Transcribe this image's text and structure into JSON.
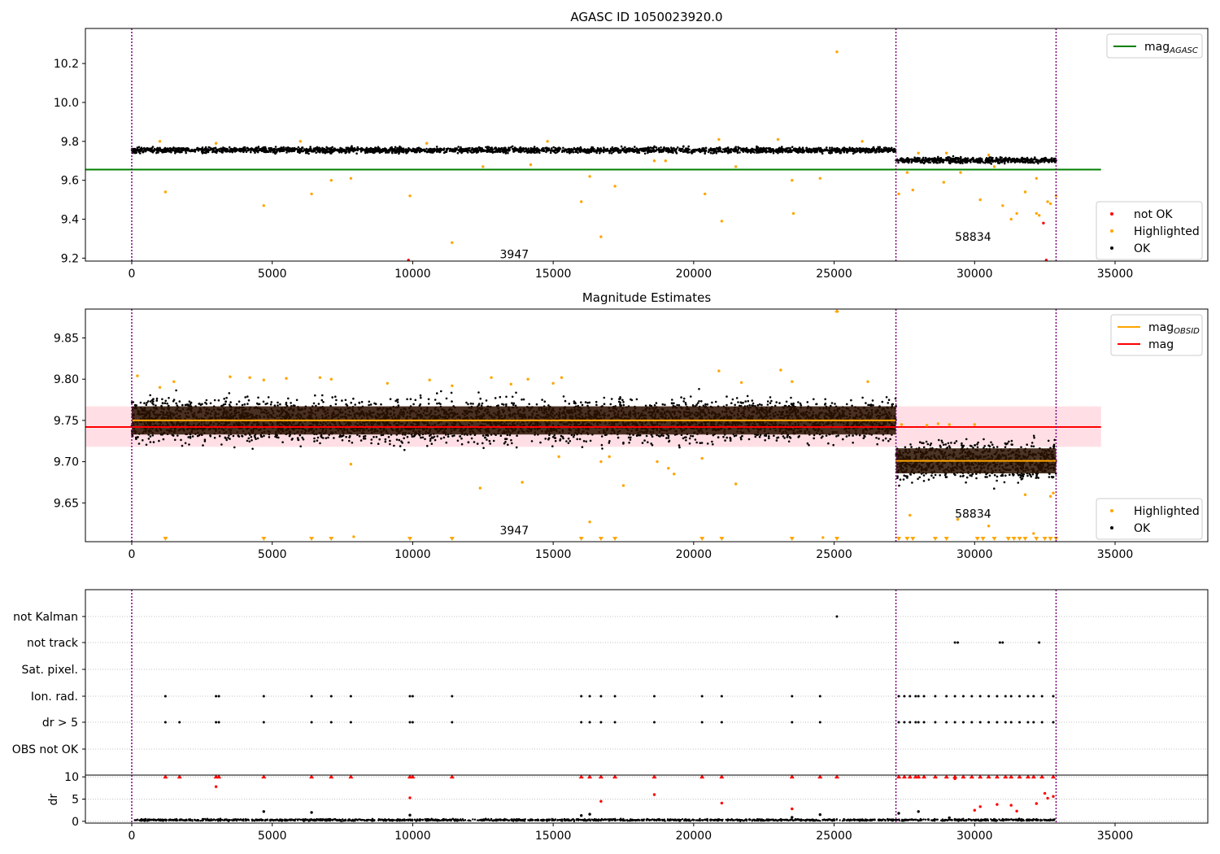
{
  "colors": {
    "ok": "#000000",
    "highlighted": "#ffa500",
    "not_ok": "#ff0000",
    "mag_agasc": "#008000",
    "mag_obsid": "#ffa500",
    "mag": "#ff0000",
    "mag_band": "#ffc0cb",
    "obs_divider": "#800080",
    "grid": "#b0b0b0"
  },
  "chart_data": [
    {
      "type": "scatter",
      "title": "AGASC ID 1050023920.0",
      "xlim": [
        -1650,
        38300
      ],
      "ylim": [
        9.185,
        10.38
      ],
      "xticks": [
        0,
        5000,
        10000,
        15000,
        20000,
        25000,
        30000,
        35000
      ],
      "yticks": [
        9.2,
        9.4,
        9.6,
        9.8,
        10.0,
        10.2
      ],
      "ytick_labels": [
        "9.2",
        "9.4",
        "9.6",
        "9.8",
        "10.0",
        "10.2"
      ],
      "obs_boundaries": [
        0,
        27200,
        32900
      ],
      "obs_labels": [
        {
          "text": "3947",
          "x": 13100,
          "y": 9.22
        },
        {
          "text": "58834",
          "x": 29300,
          "y": 9.31
        }
      ],
      "lines": [
        {
          "name": "mag",
          "sub": "AGASC",
          "y": 9.655,
          "x0": -1650,
          "x1": 34500
        }
      ],
      "legends": [
        {
          "position": "upper right",
          "items": [
            {
              "label": "mag",
              "sub": "AGASC",
              "kind": "line",
              "color": "#008000"
            }
          ]
        },
        {
          "position": "lower right",
          "items": [
            {
              "label": "not OK",
              "kind": "dot",
              "color": "#ff0000"
            },
            {
              "label": "Highlighted",
              "kind": "dot",
              "color": "#ffa500"
            },
            {
              "label": "OK",
              "kind": "dot",
              "color": "#000000"
            }
          ]
        }
      ],
      "bands": [
        {
          "x0": 0,
          "x1": 27200,
          "y_center": 9.755,
          "y_halfwidth": 0.025,
          "color": "#000000"
        },
        {
          "x0": 27200,
          "x1": 32900,
          "y_center": 9.703,
          "y_halfwidth": 0.025,
          "color": "#000000"
        }
      ],
      "series": [
        {
          "name": "Highlighted",
          "color": "#ffa500",
          "points": [
            [
              1200,
              9.54
            ],
            [
              4700,
              9.47
            ],
            [
              6400,
              9.53
            ],
            [
              7100,
              9.6
            ],
            [
              7800,
              9.61
            ],
            [
              9900,
              9.52
            ],
            [
              11400,
              9.28
            ],
            [
              12500,
              9.67
            ],
            [
              14200,
              9.68
            ],
            [
              16000,
              9.49
            ],
            [
              16300,
              9.62
            ],
            [
              16700,
              9.31
            ],
            [
              17200,
              9.57
            ],
            [
              18600,
              9.7
            ],
            [
              20400,
              9.53
            ],
            [
              21000,
              9.39
            ],
            [
              21500,
              9.67
            ],
            [
              23500,
              9.6
            ],
            [
              23550,
              9.43
            ],
            [
              24500,
              9.61
            ],
            [
              25100,
              10.26
            ],
            [
              27300,
              9.53
            ],
            [
              27600,
              9.64
            ],
            [
              27800,
              9.55
            ],
            [
              28900,
              9.59
            ],
            [
              29500,
              9.64
            ],
            [
              30200,
              9.5
            ],
            [
              30700,
              9.67
            ],
            [
              31000,
              9.47
            ],
            [
              31300,
              9.4
            ],
            [
              31500,
              9.43
            ],
            [
              31800,
              9.54
            ],
            [
              32200,
              9.43
            ],
            [
              32200,
              9.61
            ],
            [
              32300,
              9.42
            ],
            [
              32600,
              9.49
            ],
            [
              32700,
              9.48
            ],
            [
              32900,
              9.52
            ],
            [
              1000,
              9.8
            ],
            [
              3000,
              9.79
            ],
            [
              6000,
              9.8
            ],
            [
              10500,
              9.79
            ],
            [
              14800,
              9.8
            ],
            [
              19000,
              9.7
            ],
            [
              20900,
              9.81
            ],
            [
              23000,
              9.81
            ],
            [
              26000,
              9.8
            ],
            [
              28000,
              9.74
            ],
            [
              29000,
              9.74
            ],
            [
              30500,
              9.73
            ]
          ]
        },
        {
          "name": "not OK",
          "color": "#ff0000",
          "points": [
            [
              32450,
              9.38
            ],
            [
              32550,
              9.19
            ],
            [
              9850,
              9.19
            ]
          ]
        }
      ]
    },
    {
      "type": "scatter",
      "title": "Magnitude Estimates",
      "xlim": [
        -1650,
        38300
      ],
      "ylim": [
        9.603,
        9.885
      ],
      "xticks": [
        0,
        5000,
        10000,
        15000,
        20000,
        25000,
        30000,
        35000
      ],
      "yticks": [
        9.65,
        9.7,
        9.75,
        9.8,
        9.85
      ],
      "ytick_labels": [
        "9.65",
        "9.70",
        "9.75",
        "9.80",
        "9.85"
      ],
      "obs_boundaries": [
        0,
        27200,
        32900
      ],
      "obs_labels": [
        {
          "text": "3947",
          "x": 13100,
          "y": 9.617
        },
        {
          "text": "58834",
          "x": 29300,
          "y": 9.637
        }
      ],
      "mag_band": {
        "y0": 9.718,
        "y1": 9.767,
        "x0": -1650,
        "x1": 34500
      },
      "lines": [
        {
          "name": "mag",
          "sub": "",
          "y": 9.742,
          "x0": -1650,
          "x1": 34500,
          "color": "#ff0000"
        },
        {
          "name": "mag",
          "sub": "OBSID",
          "y": 9.75,
          "x0": 0,
          "x1": 27200,
          "color": "#ffa500"
        },
        {
          "name": "mag",
          "sub": "OBSID",
          "y": 9.701,
          "x0": 27200,
          "x1": 32900,
          "color": "#ffa500"
        }
      ],
      "legends": [
        {
          "position": "upper right",
          "items": [
            {
              "label": "mag",
              "sub": "OBSID",
              "kind": "line",
              "color": "#ffa500"
            },
            {
              "label": "mag",
              "sub": "",
              "kind": "line",
              "color": "#ff0000"
            }
          ]
        },
        {
          "position": "lower right",
          "items": [
            {
              "label": "Highlighted",
              "kind": "dot",
              "color": "#ffa500"
            },
            {
              "label": "OK",
              "kind": "dot",
              "color": "#000000"
            }
          ]
        }
      ],
      "bands": [
        {
          "x0": 0,
          "x1": 27200,
          "y_center": 9.75,
          "y_halfwidth": 0.045,
          "color": "#000000"
        },
        {
          "x0": 27200,
          "x1": 32900,
          "y_center": 9.701,
          "y_halfwidth": 0.04,
          "color": "#000000"
        }
      ],
      "series": [
        {
          "name": "Highlighted",
          "color": "#ffa500",
          "points": [
            [
              200,
              9.804
            ],
            [
              1000,
              9.79
            ],
            [
              1500,
              9.797
            ],
            [
              3500,
              9.803
            ],
            [
              4200,
              9.802
            ],
            [
              4700,
              9.799
            ],
            [
              5500,
              9.801
            ],
            [
              6700,
              9.802
            ],
            [
              7100,
              9.8
            ],
            [
              7800,
              9.697
            ],
            [
              7900,
              9.609
            ],
            [
              9100,
              9.795
            ],
            [
              10600,
              9.799
            ],
            [
              11400,
              9.792
            ],
            [
              12400,
              9.668
            ],
            [
              12800,
              9.802
            ],
            [
              13500,
              9.794
            ],
            [
              13900,
              9.675
            ],
            [
              14100,
              9.8
            ],
            [
              15000,
              9.795
            ],
            [
              15200,
              9.706
            ],
            [
              15300,
              9.802
            ],
            [
              16300,
              9.627
            ],
            [
              16700,
              9.7
            ],
            [
              17000,
              9.706
            ],
            [
              17500,
              9.671
            ],
            [
              18700,
              9.7
            ],
            [
              19100,
              9.692
            ],
            [
              19300,
              9.685
            ],
            [
              20300,
              9.704
            ],
            [
              20900,
              9.81
            ],
            [
              21500,
              9.673
            ],
            [
              21700,
              9.796
            ],
            [
              23100,
              9.811
            ],
            [
              23500,
              9.797
            ],
            [
              24600,
              9.608
            ],
            [
              25100,
              9.882
            ],
            [
              26200,
              9.797
            ],
            [
              27400,
              9.745
            ],
            [
              27700,
              9.635
            ],
            [
              28300,
              9.744
            ],
            [
              28700,
              9.746
            ],
            [
              29100,
              9.745
            ],
            [
              29400,
              9.63
            ],
            [
              30000,
              9.745
            ],
            [
              30500,
              9.622
            ],
            [
              31800,
              9.66
            ],
            [
              32100,
              9.613
            ],
            [
              32700,
              9.658
            ],
            [
              32800,
              9.662
            ]
          ]
        }
      ],
      "markers_bottom": {
        "color": "#ffa500",
        "shape": "triangle-down",
        "x": [
          1200,
          4700,
          6400,
          7100,
          9900,
          11400,
          16000,
          16700,
          17200,
          20300,
          21000,
          23500,
          25100,
          27300,
          27600,
          27800,
          28600,
          29000,
          30100,
          30300,
          30700,
          31200,
          31400,
          31600,
          31800,
          32200,
          32500,
          32700,
          32900
        ]
      }
    },
    {
      "type": "scatter",
      "title": "",
      "xlim": [
        -1650,
        38300
      ],
      "xticks": [
        0,
        5000,
        10000,
        15000,
        20000,
        25000,
        30000,
        35000
      ],
      "flag_rows": [
        "not Kalman",
        "not track",
        "Sat. pixel.",
        "Ion. rad.",
        "dr > 5",
        "OBS not OK"
      ],
      "obs_boundaries": [
        0,
        27200,
        32900
      ],
      "flags": {
        "not Kalman": [
          25100
        ],
        "not track": [
          29300,
          29400,
          30900,
          31000,
          32300
        ],
        "Sat. pixel.": [],
        "Ion. rad.": [
          1200,
          3000,
          3100,
          4700,
          6400,
          7100,
          7800,
          9900,
          10000,
          11400,
          16000,
          16300,
          16700,
          17200,
          18600,
          20300,
          21000,
          23500,
          24500,
          27300,
          27500,
          27700,
          27900,
          28000,
          28200,
          28600,
          29000,
          29300,
          29600,
          29900,
          30200,
          30500,
          30800,
          31100,
          31300,
          31600,
          31900,
          32100,
          32400,
          32800
        ],
        "dr > 5": [
          1200,
          1700,
          3000,
          3100,
          4700,
          6400,
          7100,
          7800,
          9900,
          10000,
          11400,
          16000,
          16300,
          16700,
          17200,
          18600,
          20300,
          21000,
          23500,
          24500,
          27300,
          27500,
          27700,
          27900,
          28000,
          28200,
          28600,
          29000,
          29300,
          29600,
          29900,
          30200,
          30500,
          30800,
          31100,
          31300,
          31600,
          31900,
          32100,
          32400,
          32800
        ],
        "OBS not OK": []
      }
    },
    {
      "type": "scatter",
      "title": "",
      "ylabel": "dr",
      "xlim": [
        -1650,
        38300
      ],
      "ylim": [
        -0.4,
        10.4
      ],
      "xticks": [
        0,
        5000,
        10000,
        15000,
        20000,
        25000,
        30000,
        35000
      ],
      "yticks": [
        0,
        5,
        10
      ],
      "ytick_labels": [
        "0",
        "5",
        "10"
      ],
      "obs_boundaries": [
        0,
        27200,
        32900
      ],
      "baseline_band": {
        "y_center": 0.3,
        "y_halfwidth": 0.35,
        "color": "#000000"
      },
      "series": [
        {
          "name": "OK",
          "color": "#000000",
          "points": [
            [
              4700,
              2.2
            ],
            [
              6400,
              2.0
            ],
            [
              9900,
              1.4
            ],
            [
              16000,
              1.3
            ],
            [
              16300,
              1.6
            ],
            [
              23500,
              0.9
            ],
            [
              24500,
              1.5
            ],
            [
              27300,
              1.8
            ],
            [
              28000,
              2.2
            ],
            [
              29100,
              0.8
            ]
          ]
        },
        {
          "name": "not OK",
          "color": "#ff0000",
          "points": [
            [
              3000,
              7.8
            ],
            [
              9900,
              5.3
            ],
            [
              16700,
              4.5
            ],
            [
              18600,
              6.0
            ],
            [
              21000,
              4.1
            ],
            [
              23500,
              2.8
            ],
            [
              29300,
              9.6
            ],
            [
              30000,
              2.5
            ],
            [
              30200,
              3.3
            ],
            [
              30800,
              3.8
            ],
            [
              31300,
              3.6
            ],
            [
              31500,
              2.3
            ],
            [
              32200,
              4.0
            ],
            [
              32500,
              6.3
            ],
            [
              32600,
              5.2
            ],
            [
              32800,
              5.6
            ]
          ]
        }
      ],
      "top_markers": {
        "color": "#ff0000",
        "shape": "triangle-up",
        "x": [
          1200,
          1700,
          3000,
          3100,
          4700,
          6400,
          7100,
          7800,
          9900,
          10000,
          11400,
          16000,
          16300,
          16700,
          17200,
          18600,
          20300,
          21000,
          23500,
          24500,
          25100,
          27300,
          27500,
          27700,
          27900,
          28000,
          28200,
          28600,
          29000,
          29300,
          29600,
          29900,
          30200,
          30500,
          30800,
          31100,
          31300,
          31600,
          31900,
          32100,
          32400,
          32800
        ]
      }
    }
  ]
}
